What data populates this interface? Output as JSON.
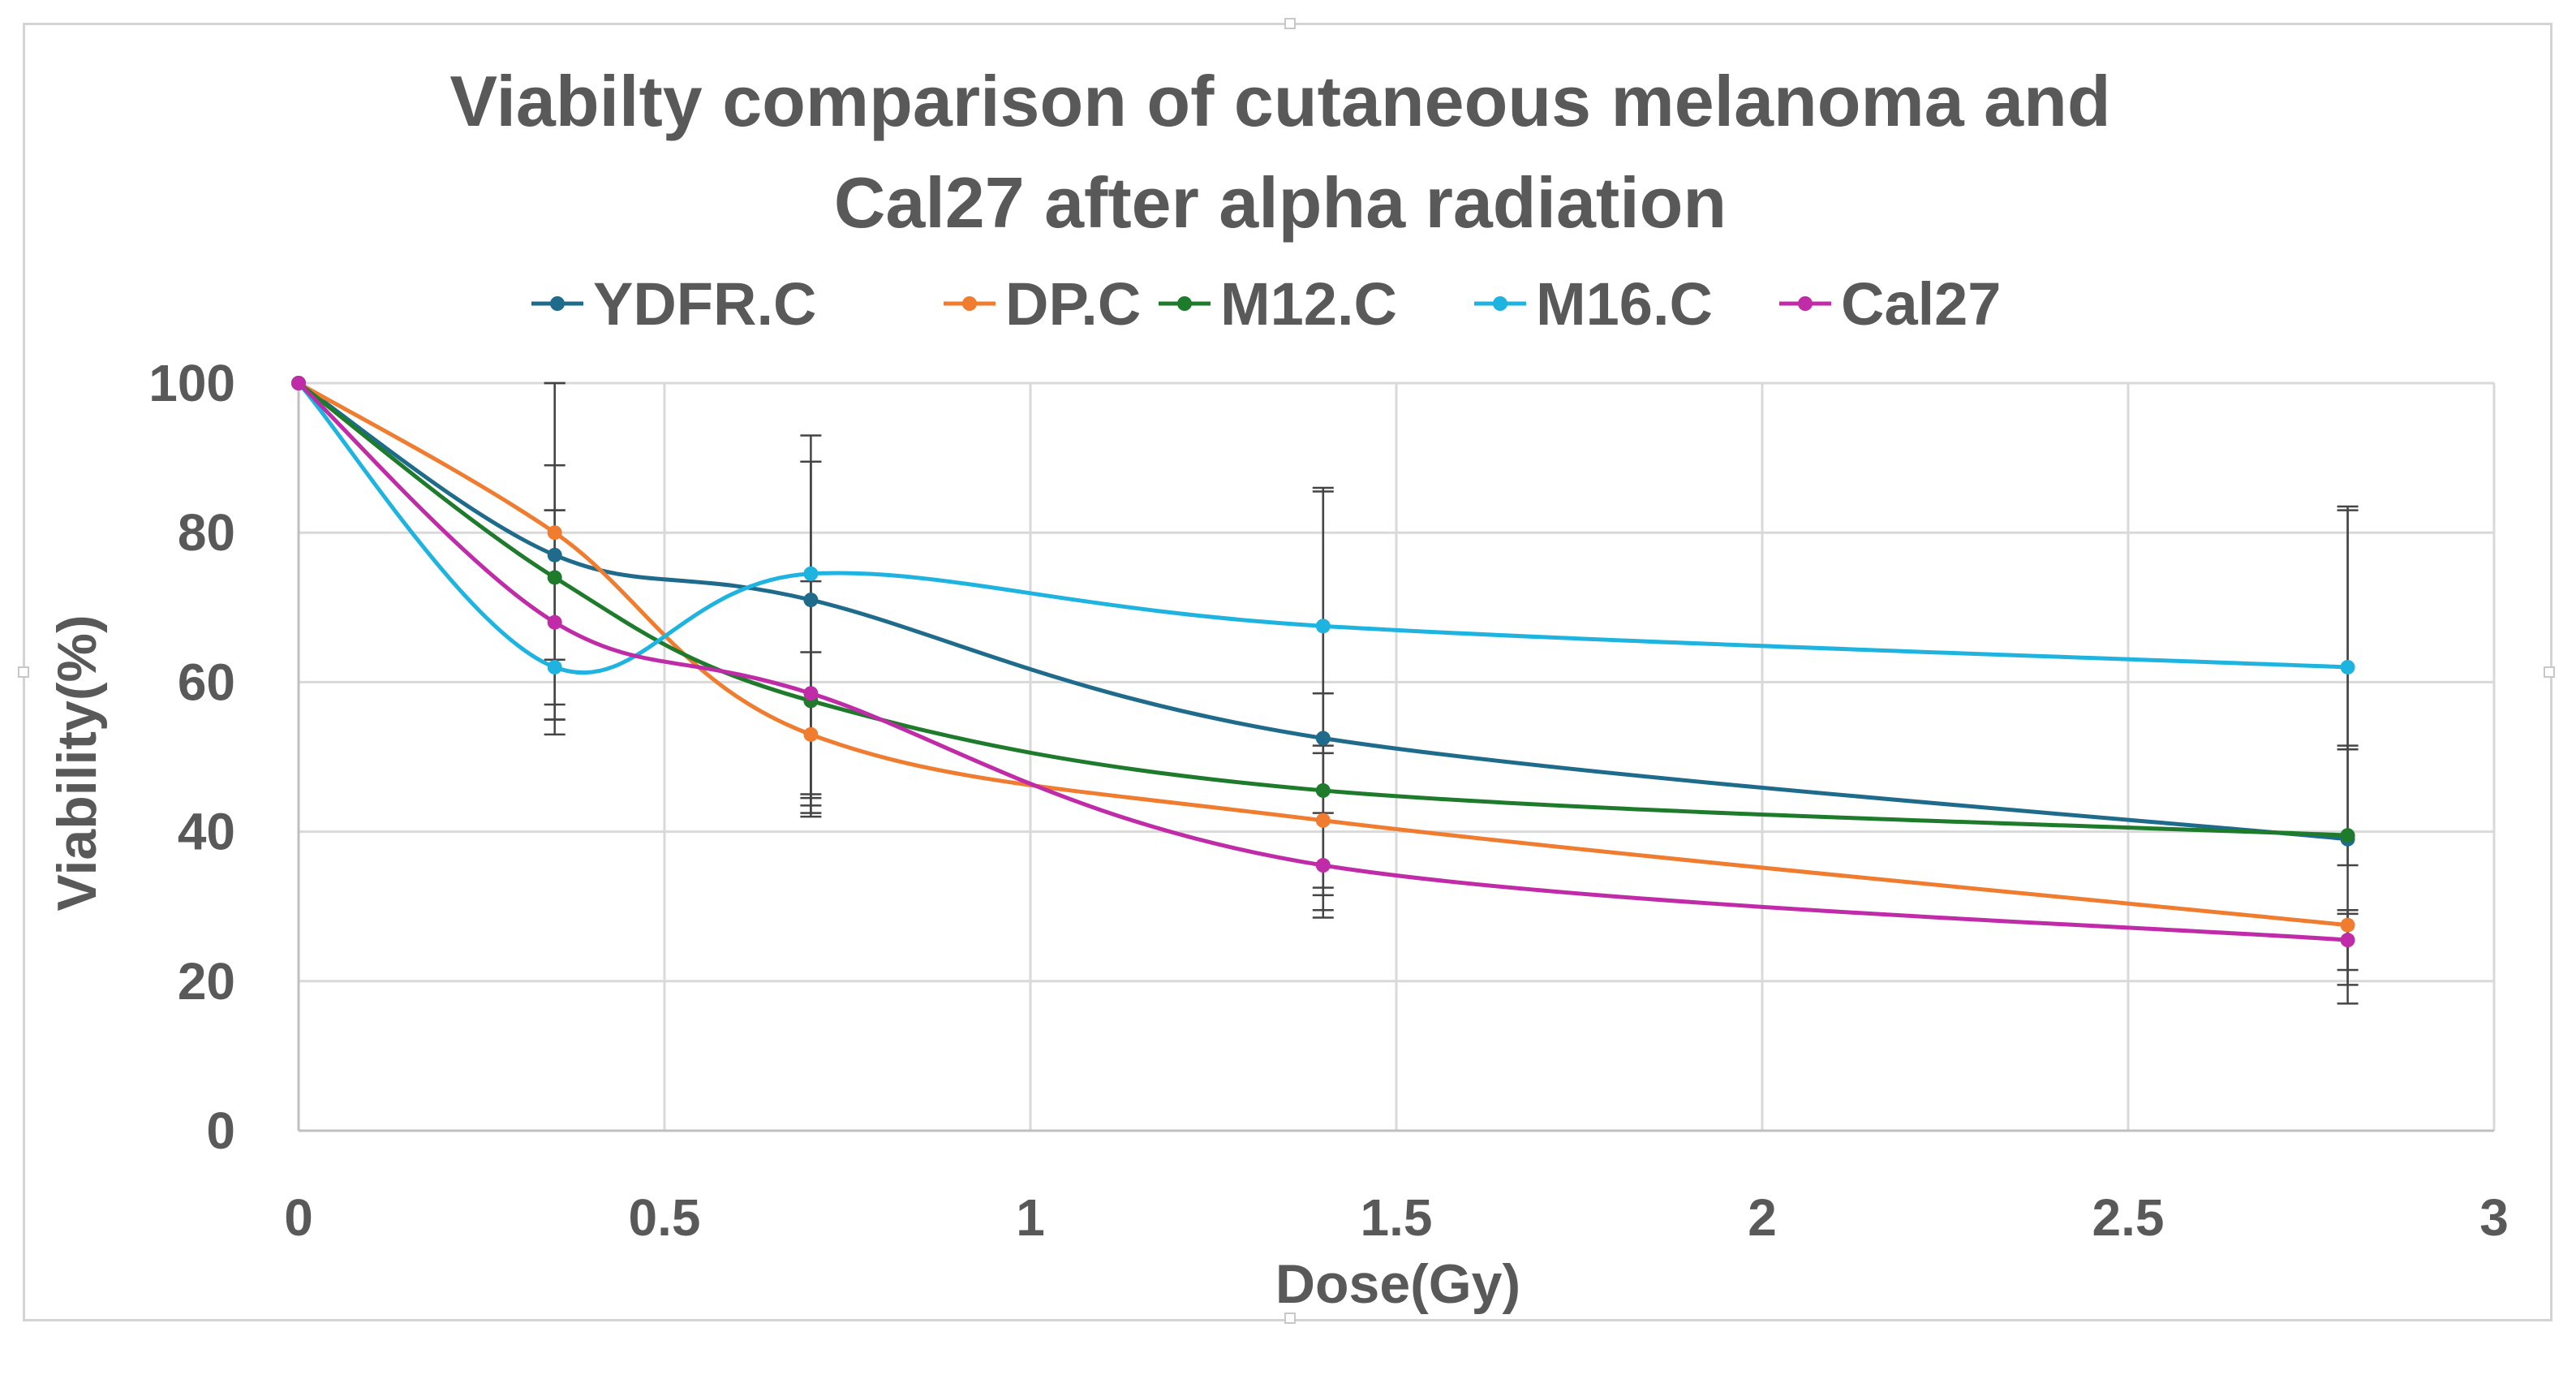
{
  "chart_data": {
    "type": "line",
    "title_lines": [
      "Viabilty comparison of cutaneous melanoma and",
      "Cal27 after alpha radiation"
    ],
    "xlabel": "Dose(Gy)",
    "ylabel": "Viability(%)",
    "xlim": [
      0,
      3
    ],
    "ylim": [
      0,
      100
    ],
    "xticks": [
      0,
      0.5,
      1,
      1.5,
      2,
      2.5,
      3
    ],
    "xtick_labels": [
      "0",
      "0.5",
      "1",
      "1.5",
      "2",
      "2.5",
      "3"
    ],
    "yticks": [
      0,
      20,
      40,
      60,
      80,
      100
    ],
    "ytick_labels": [
      "0",
      "20",
      "40",
      "60",
      "80",
      "100"
    ],
    "grid": true,
    "legend_position": "top",
    "smooth": true,
    "x": [
      0,
      0.35,
      0.7,
      1.4,
      2.8
    ],
    "series": [
      {
        "name": "YDFR.C",
        "color": "#1f6b8c",
        "values": [
          100,
          77,
          71,
          52.5,
          39
        ],
        "err_low": [
          0,
          24,
          26,
          23,
          22
        ],
        "err_high": [
          0,
          24,
          22,
          33.5,
          44.5
        ]
      },
      {
        "name": "DP.C",
        "color": "#f07c30",
        "values": [
          100,
          80,
          53,
          41.5,
          27.5
        ],
        "err_low": [
          0,
          17,
          11,
          9,
          6
        ],
        "err_high": [
          0,
          9,
          11,
          9,
          2
        ]
      },
      {
        "name": "M12.C",
        "color": "#1e7b2c",
        "values": [
          100,
          74,
          57.5,
          45.5,
          39.5
        ],
        "err_low": [
          0,
          19,
          15,
          14,
          4
        ],
        "err_high": [
          0,
          26,
          32,
          13,
          12
        ]
      },
      {
        "name": "M16.C",
        "color": "#1fb4e0",
        "values": [
          100,
          62,
          74.5,
          67.5,
          62
        ],
        "err_low": [
          0,
          7,
          30,
          25,
          11
        ],
        "err_high": [
          0,
          21,
          15,
          18,
          21
        ]
      },
      {
        "name": "Cal27",
        "color": "#c02ba8",
        "values": [
          100,
          68,
          58.5,
          35.5,
          25.5
        ],
        "err_low": [
          0,
          11,
          15,
          7,
          6
        ],
        "err_high": [
          0,
          15,
          15,
          16,
          3.5
        ]
      }
    ]
  }
}
